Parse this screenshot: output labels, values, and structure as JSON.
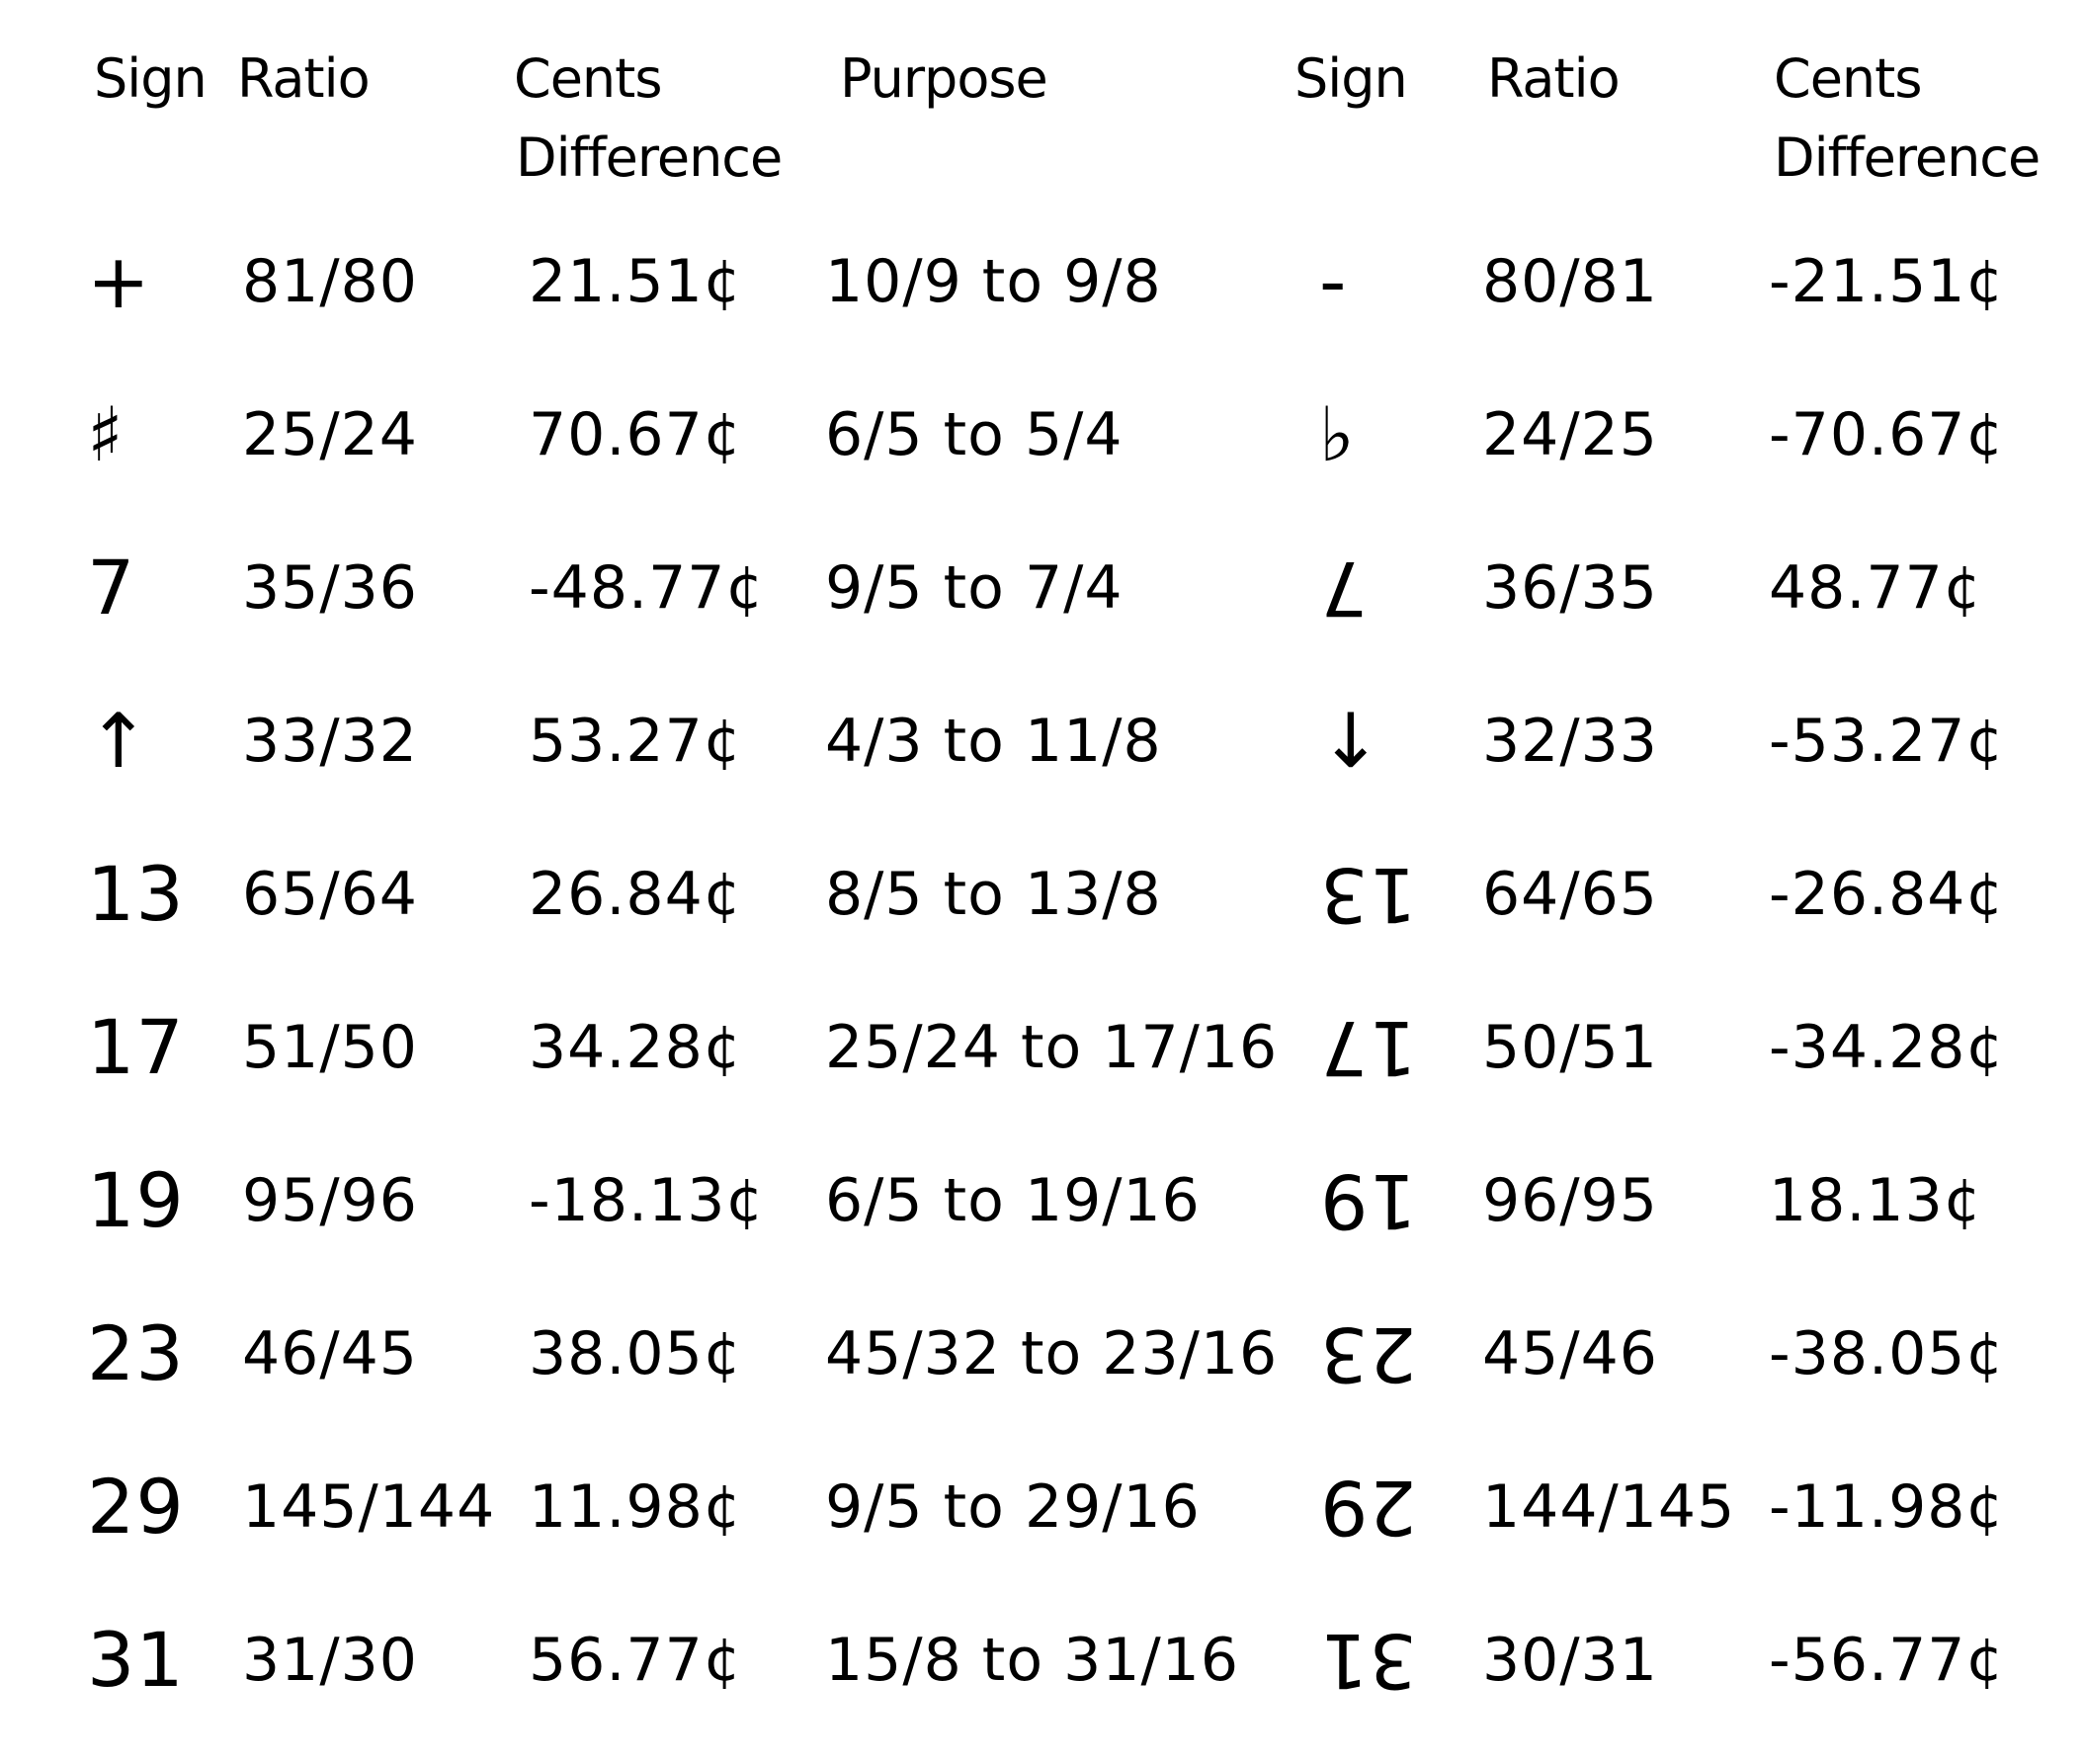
{
  "headers": {
    "left": {
      "sign": "Sign",
      "ratio": "Ratio",
      "cents_line1": "Cents",
      "cents_line2": "Difference",
      "purpose": "Purpose"
    },
    "right": {
      "sign": "Sign",
      "ratio": "Ratio",
      "cents_line1": "Cents",
      "cents_line2": "Difference"
    }
  },
  "rows": [
    {
      "sign": "+",
      "ratio": "81/80",
      "cents": "21.51¢",
      "purpose": "10/9 to 9/8",
      "inv_sign": "-",
      "inv_ratio": "80/81",
      "inv_cents": "-21.51¢"
    },
    {
      "sign": "♯",
      "ratio": "25/24",
      "cents": "70.67¢",
      "purpose": "6/5 to 5/4",
      "inv_sign": "♭",
      "inv_ratio": "24/25",
      "inv_cents": "-70.67¢"
    },
    {
      "sign": "7",
      "ratio": "35/36",
      "cents": "-48.77¢",
      "purpose": "9/5 to 7/4",
      "inv_sign": "7",
      "inv_ratio": "36/35",
      "inv_cents": "48.77¢"
    },
    {
      "sign": "↑",
      "ratio": "33/32",
      "cents": "53.27¢",
      "purpose": "4/3 to 11/8",
      "inv_sign": "↓",
      "inv_ratio": "32/33",
      "inv_cents": "-53.27¢"
    },
    {
      "sign": "13",
      "ratio": "65/64",
      "cents": "26.84¢",
      "purpose": "8/5 to 13/8",
      "inv_sign": "13",
      "inv_ratio": "64/65",
      "inv_cents": "-26.84¢"
    },
    {
      "sign": "17",
      "ratio": "51/50",
      "cents": "34.28¢",
      "purpose": "25/24 to 17/16",
      "inv_sign": "17",
      "inv_ratio": "50/51",
      "inv_cents": "-34.28¢"
    },
    {
      "sign": "19",
      "ratio": "95/96",
      "cents": "-18.13¢",
      "purpose": "6/5 to 19/16",
      "inv_sign": "19",
      "inv_ratio": "96/95",
      "inv_cents": "18.13¢"
    },
    {
      "sign": "23",
      "ratio": "46/45",
      "cents": "38.05¢",
      "purpose": "45/32 to 23/16",
      "inv_sign": "23",
      "inv_ratio": "45/46",
      "inv_cents": "-38.05¢"
    },
    {
      "sign": "29",
      "ratio": "145/144",
      "cents": "11.98¢",
      "purpose": "9/5 to 29/16",
      "inv_sign": "29",
      "inv_ratio": "144/145",
      "inv_cents": "-11.98¢"
    },
    {
      "sign": "31",
      "ratio": "31/30",
      "cents": "56.77¢",
      "purpose": "15/8 to 31/16",
      "inv_sign": "31",
      "inv_ratio": "30/31",
      "inv_cents": "-56.77¢"
    }
  ],
  "inverted_signs_rotated": [
    false,
    false,
    true,
    false,
    true,
    true,
    true,
    true,
    true,
    true
  ]
}
